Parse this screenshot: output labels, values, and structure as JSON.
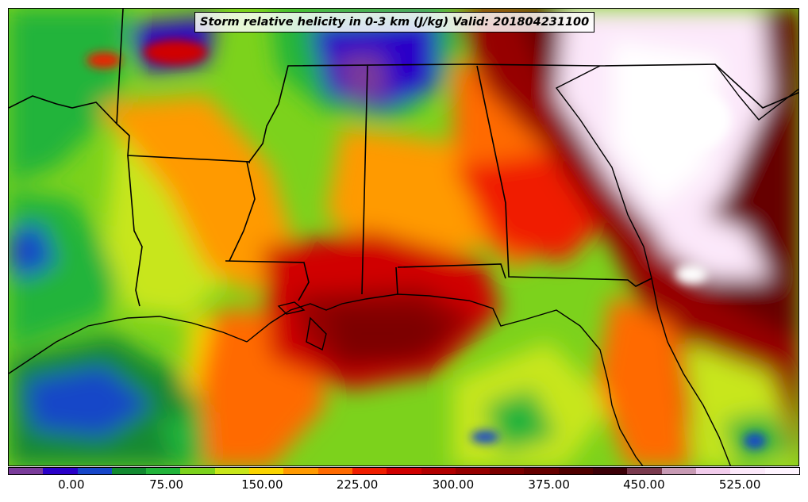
{
  "title": "Storm relative helicity in 0-3 km (J/kg) Valid: 201804231100",
  "colorbar": {
    "colors": [
      "#7a3b9a",
      "#2a00c8",
      "#1646c8",
      "#128a30",
      "#22b43a",
      "#7cd21c",
      "#c8e61a",
      "#fad400",
      "#ff9a00",
      "#ff6a00",
      "#f01e00",
      "#d00000",
      "#b20000",
      "#960000",
      "#7c0000",
      "#660000",
      "#500000",
      "#3c0008",
      "#7a3a4e",
      "#c89ab4",
      "#f2ccec",
      "#fce8fa",
      "#fff4ff"
    ],
    "tick_labels": [
      "0.00",
      "75.00",
      "150.00",
      "225.00",
      "300.00",
      "375.00",
      "450.00",
      "525.00"
    ],
    "tick_fraction": [
      0.08,
      0.2,
      0.321,
      0.441,
      0.562,
      0.683,
      0.803,
      0.924
    ]
  },
  "legend_units": "J/kg"
}
